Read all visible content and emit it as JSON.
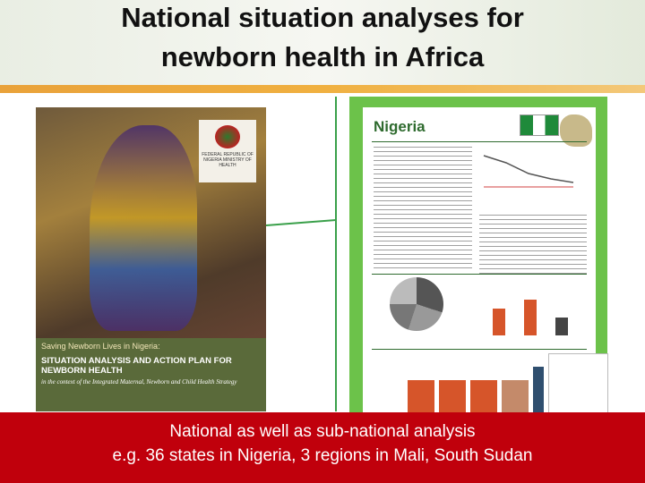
{
  "header": {
    "title": [
      "National situation analyses for",
      "newborn health in Africa"
    ]
  },
  "cover": {
    "ministry": "FEDERAL REPUBLIC OF NIGERIA MINISTRY OF HEALTH",
    "series": "Saving Newborn Lives in Nigeria:",
    "heading": "SITUATION ANALYSIS AND ACTION PLAN FOR NEWBORN HEALTH",
    "context": "in the context of the Integrated Maternal, Newborn and Child Health Strategy"
  },
  "profile": {
    "title": "Nigeria"
  },
  "banner": {
    "lines": [
      "National as well as sub-national analysis",
      "e.g. 36 states in Nigeria, 3 regions in Mali, South Sudan"
    ]
  }
}
